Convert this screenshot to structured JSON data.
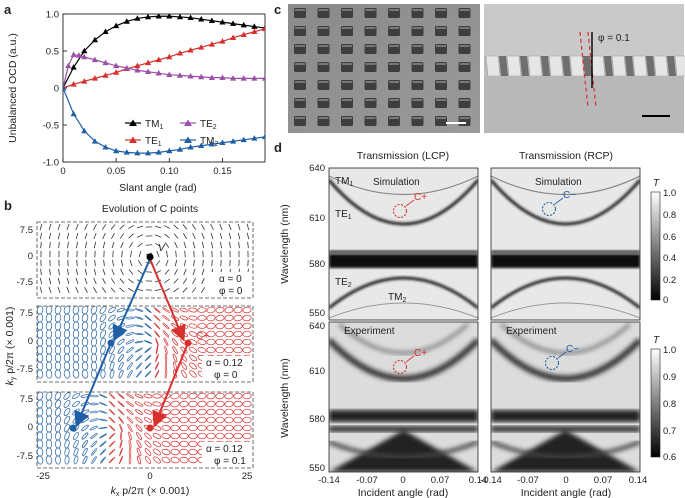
{
  "panels": {
    "a": "a",
    "b": "b",
    "c": "c",
    "d": "d"
  },
  "panel_a": {
    "chart_data": {
      "type": "line",
      "xlabel": "Slant angle (rad)",
      "ylabel": "Unbalanced OCD (a.u.)",
      "xlim": [
        0,
        0.19
      ],
      "ylim": [
        -1.0,
        1.0
      ],
      "xticks": [
        "0",
        "0.05",
        "0.10",
        "0.15"
      ],
      "xtick_values": [
        0,
        0.05,
        0.1,
        0.15
      ],
      "yticks": [
        "1.0",
        "0.5",
        "0",
        "-0.5",
        "-1.0"
      ],
      "ytick_values": [
        1.0,
        0.5,
        0,
        -0.5,
        -1.0
      ],
      "legend": {
        "TM1": "TM",
        "TE2": "TE",
        "TE1": "TE",
        "TM2": "TM",
        "sub_TM1": "1",
        "sub_TE2": "2",
        "sub_TE1": "1",
        "sub_TM2": "2"
      },
      "series": [
        {
          "key": "TM1",
          "color": "#000000",
          "marker": "triangle",
          "x": [
            0,
            0.01,
            0.02,
            0.03,
            0.04,
            0.05,
            0.06,
            0.07,
            0.08,
            0.09,
            0.1,
            0.11,
            0.12,
            0.13,
            0.14,
            0.15,
            0.16,
            0.17,
            0.18,
            0.19
          ],
          "y": [
            0,
            0.28,
            0.5,
            0.65,
            0.76,
            0.84,
            0.9,
            0.94,
            0.96,
            0.97,
            0.97,
            0.96,
            0.95,
            0.93,
            0.91,
            0.89,
            0.87,
            0.85,
            0.83,
            0.81
          ]
        },
        {
          "key": "TE1",
          "color": "#d7312e",
          "marker": "triangle",
          "x": [
            0,
            0.01,
            0.02,
            0.03,
            0.04,
            0.05,
            0.06,
            0.07,
            0.08,
            0.09,
            0.1,
            0.11,
            0.12,
            0.13,
            0.14,
            0.15,
            0.16,
            0.17,
            0.18,
            0.19
          ],
          "y": [
            0,
            0.05,
            0.09,
            0.13,
            0.17,
            0.21,
            0.26,
            0.3,
            0.34,
            0.38,
            0.42,
            0.47,
            0.51,
            0.55,
            0.59,
            0.63,
            0.68,
            0.72,
            0.76,
            0.8
          ]
        },
        {
          "key": "TE2",
          "color": "#9b4fa8",
          "marker": "triangle",
          "x": [
            0,
            0.005,
            0.01,
            0.015,
            0.02,
            0.03,
            0.04,
            0.05,
            0.06,
            0.07,
            0.08,
            0.09,
            0.1,
            0.11,
            0.12,
            0.13,
            0.14,
            0.15,
            0.16,
            0.17,
            0.18,
            0.19
          ],
          "y": [
            0,
            0.3,
            0.45,
            0.44,
            0.42,
            0.38,
            0.34,
            0.3,
            0.27,
            0.24,
            0.22,
            0.2,
            0.18,
            0.17,
            0.16,
            0.15,
            0.14,
            0.14,
            0.13,
            0.13,
            0.13,
            0.13
          ]
        },
        {
          "key": "TM2",
          "color": "#1f5fa5",
          "marker": "triangle",
          "x": [
            0,
            0.01,
            0.02,
            0.03,
            0.04,
            0.05,
            0.06,
            0.07,
            0.08,
            0.09,
            0.1,
            0.11,
            0.12,
            0.13,
            0.14,
            0.15,
            0.16,
            0.17,
            0.18,
            0.19
          ],
          "y": [
            0,
            -0.35,
            -0.58,
            -0.72,
            -0.8,
            -0.85,
            -0.87,
            -0.88,
            -0.88,
            -0.87,
            -0.85,
            -0.83,
            -0.8,
            -0.78,
            -0.76,
            -0.74,
            -0.72,
            -0.7,
            -0.68,
            -0.66
          ]
        }
      ]
    }
  },
  "panel_b": {
    "title": "Evolution of C points",
    "xlabel_main": "k",
    "xlabel_sub": "x",
    "xlabel_rest": " p/2π (× 0.001)",
    "ylabel_main": "k",
    "ylabel_sub": "y",
    "ylabel_rest": " p/2π (× 0.001)",
    "xticks": [
      "-25",
      "0",
      "25"
    ],
    "yticks": [
      "7.5",
      "0",
      "-7.5"
    ],
    "V": "V",
    "Cplus": "C+",
    "rows": [
      {
        "alpha": "α = 0",
        "phi": "φ = 0"
      },
      {
        "alpha": "α = 0.12",
        "phi": "φ = 0"
      },
      {
        "alpha": "α = 0.12",
        "phi": "φ = 0.1"
      }
    ]
  },
  "panel_c": {
    "phi_label": "φ = 0.1"
  },
  "panel_d": {
    "titles": [
      "Transmission (LCP)",
      "Transmission (RCP)"
    ],
    "sim_label": "Simulation",
    "exp_label": "Experiment",
    "ylabel": "Wavelength (nm)",
    "xlabel": "Incident angle (rad)",
    "yticks_sim": [
      "640",
      "610",
      "580",
      "550"
    ],
    "yticks_exp": [
      "640",
      "610",
      "580",
      "550"
    ],
    "xticks": [
      "-0.14",
      "-0.07",
      "0",
      "0.07",
      "0.14"
    ],
    "mode_labels": {
      "TM1": "TM",
      "TM1_sub": "1",
      "TE1": "TE",
      "TE1_sub": "1",
      "TE2": "TE",
      "TE2_sub": "2",
      "TM2": "TM",
      "TM2_sub": "2"
    },
    "cplus": "C+",
    "cminus": "C−",
    "cbar_label": "T",
    "cbar_sim": [
      "1.0",
      "0.8",
      "0.6",
      "0.4",
      "0.2",
      "0"
    ],
    "cbar_exp": [
      "1.0",
      "0.9",
      "0.8",
      "0.7",
      "0.6"
    ],
    "colors": {
      "red": "#d7312e",
      "blue": "#1f5fa5"
    }
  }
}
